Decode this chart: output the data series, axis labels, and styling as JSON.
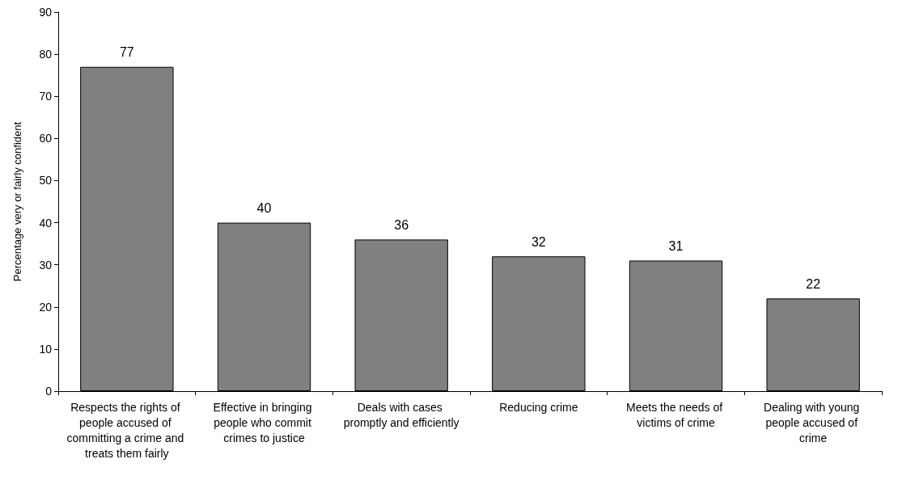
{
  "chart_data": {
    "type": "bar",
    "ylabel": "Percentage very or fairly confident",
    "categories": [
      "Respects the rights of people accused of committing a crime and treats them fairly",
      "Effective in bringing people who commit crimes to justice",
      "Deals with cases promptly and efficiently",
      "Reducing crime",
      "Meets the needs of victims of crime",
      "Dealing with young people accused of crime"
    ],
    "values": [
      77,
      40,
      36,
      32,
      31,
      22
    ],
    "color": "#808080",
    "ylim": [
      0,
      90
    ],
    "yticks": [
      0,
      10,
      20,
      30,
      40,
      50,
      60,
      70,
      80,
      90
    ],
    "grid": false,
    "data_labels": true
  }
}
